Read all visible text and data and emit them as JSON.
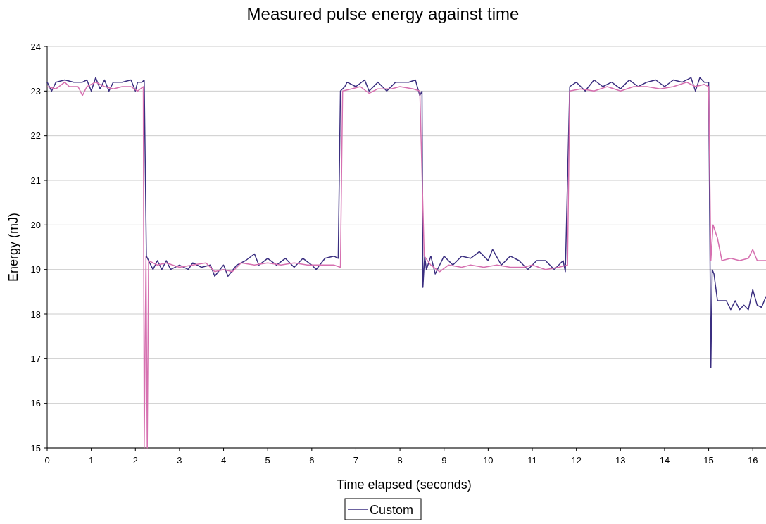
{
  "chart_data": {
    "type": "line",
    "title": "Measured pulse energy against time",
    "xlabel": "Time elapsed (seconds)",
    "ylabel": "Energy (mJ)",
    "xlim": [
      0,
      16.3
    ],
    "xticks": [
      0,
      1,
      2,
      3,
      4,
      5,
      6,
      7,
      8,
      9,
      10,
      11,
      12,
      13,
      14,
      15,
      16
    ],
    "ylim": [
      15,
      24
    ],
    "yticks": [
      15,
      16,
      17,
      18,
      19,
      20,
      21,
      22,
      23,
      24
    ],
    "grid": "y",
    "legend": "bottom",
    "marker": "none",
    "line_style": "solid",
    "series": [
      {
        "name": "Custom",
        "color": "#3b2f80",
        "x": [
          0,
          0.1,
          0.2,
          0.4,
          0.6,
          0.8,
          0.9,
          1.0,
          1.1,
          1.2,
          1.3,
          1.4,
          1.5,
          1.7,
          1.9,
          2.0,
          2.05,
          2.15,
          2.2,
          2.25,
          2.3,
          2.4,
          2.5,
          2.6,
          2.7,
          2.8,
          3.0,
          3.2,
          3.3,
          3.5,
          3.7,
          3.8,
          4.0,
          4.1,
          4.3,
          4.5,
          4.7,
          4.8,
          5.0,
          5.2,
          5.4,
          5.6,
          5.8,
          6.0,
          6.1,
          6.3,
          6.5,
          6.6,
          6.65,
          6.75,
          6.8,
          7.0,
          7.2,
          7.3,
          7.5,
          7.7,
          7.9,
          8.2,
          8.35,
          8.45,
          8.5,
          8.52,
          8.56,
          8.6,
          8.7,
          8.8,
          9.0,
          9.2,
          9.4,
          9.6,
          9.8,
          10.0,
          10.1,
          10.3,
          10.5,
          10.7,
          10.9,
          11.1,
          11.3,
          11.5,
          11.7,
          11.75,
          11.85,
          12.0,
          12.2,
          12.4,
          12.6,
          12.8,
          13.0,
          13.2,
          13.4,
          13.6,
          13.8,
          14.0,
          14.2,
          14.4,
          14.6,
          14.7,
          14.8,
          14.9,
          15.0,
          15.05,
          15.08,
          15.12,
          15.2,
          15.4,
          15.5,
          15.6,
          15.7,
          15.8,
          15.9,
          16.0,
          16.1,
          16.2,
          16.3
        ],
        "values": [
          23.2,
          23.0,
          23.2,
          23.25,
          23.2,
          23.2,
          23.25,
          23.0,
          23.3,
          23.05,
          23.25,
          23.0,
          23.2,
          23.2,
          23.25,
          23.0,
          23.2,
          23.2,
          23.25,
          19.3,
          19.2,
          19.0,
          19.2,
          19.0,
          19.2,
          19.0,
          19.1,
          19.0,
          19.15,
          19.05,
          19.1,
          18.85,
          19.1,
          18.85,
          19.1,
          19.2,
          19.35,
          19.1,
          19.25,
          19.1,
          19.25,
          19.05,
          19.25,
          19.1,
          19.0,
          19.25,
          19.3,
          19.25,
          23.0,
          23.1,
          23.2,
          23.1,
          23.25,
          23.0,
          23.2,
          23.0,
          23.2,
          23.2,
          23.25,
          22.9,
          23.0,
          18.6,
          19.3,
          19.0,
          19.3,
          18.9,
          19.3,
          19.1,
          19.3,
          19.25,
          19.4,
          19.2,
          19.45,
          19.1,
          19.3,
          19.2,
          19.0,
          19.2,
          19.2,
          19.0,
          19.2,
          18.95,
          23.1,
          23.2,
          23.0,
          23.25,
          23.1,
          23.2,
          23.05,
          23.25,
          23.1,
          23.2,
          23.25,
          23.1,
          23.25,
          23.2,
          23.3,
          23.0,
          23.3,
          23.2,
          23.2,
          16.8,
          19.0,
          18.9,
          18.3,
          18.3,
          18.1,
          18.3,
          18.1,
          18.2,
          18.1,
          18.55,
          18.2,
          18.15,
          18.4
        ]
      },
      {
        "color": "#d670b0",
        "x": [
          0,
          0.2,
          0.4,
          0.5,
          0.7,
          0.8,
          0.9,
          1.1,
          1.3,
          1.5,
          1.7,
          1.9,
          2.05,
          2.18,
          2.2,
          2.24,
          2.27,
          2.3,
          2.5,
          2.7,
          3.0,
          3.3,
          3.6,
          3.8,
          4.0,
          4.2,
          4.4,
          4.7,
          5.0,
          5.3,
          5.6,
          5.9,
          6.2,
          6.5,
          6.65,
          6.7,
          6.9,
          7.1,
          7.3,
          7.5,
          7.8,
          8.0,
          8.3,
          8.45,
          8.55,
          8.7,
          8.9,
          9.1,
          9.4,
          9.6,
          9.9,
          10.2,
          10.5,
          10.8,
          11.0,
          11.3,
          11.6,
          11.8,
          11.85,
          12.1,
          12.4,
          12.7,
          13.0,
          13.3,
          13.6,
          13.9,
          14.2,
          14.5,
          14.7,
          14.9,
          15.0,
          15.05,
          15.1,
          15.2,
          15.3,
          15.5,
          15.7,
          15.9,
          16.0,
          16.1,
          16.3
        ],
        "values": [
          23.1,
          23.05,
          23.2,
          23.1,
          23.1,
          22.9,
          23.1,
          23.2,
          23.1,
          23.05,
          23.1,
          23.1,
          23.0,
          23.1,
          15,
          19.3,
          15,
          19.2,
          19.1,
          19.15,
          19.05,
          19.1,
          19.15,
          18.95,
          19.0,
          18.95,
          19.15,
          19.1,
          19.15,
          19.1,
          19.15,
          19.1,
          19.1,
          19.1,
          19.05,
          23.0,
          23.05,
          23.1,
          22.95,
          23.05,
          23.05,
          23.1,
          23.05,
          23.0,
          19.3,
          19.1,
          18.95,
          19.1,
          19.05,
          19.1,
          19.05,
          19.1,
          19.05,
          19.05,
          19.1,
          19.0,
          19.05,
          19.1,
          23.0,
          23.05,
          23.0,
          23.1,
          23.0,
          23.1,
          23.1,
          23.05,
          23.1,
          23.2,
          23.1,
          23.15,
          23.1,
          19.2,
          20.0,
          19.7,
          19.2,
          19.25,
          19.2,
          19.25,
          19.45,
          19.2,
          19.2
        ]
      }
    ]
  }
}
